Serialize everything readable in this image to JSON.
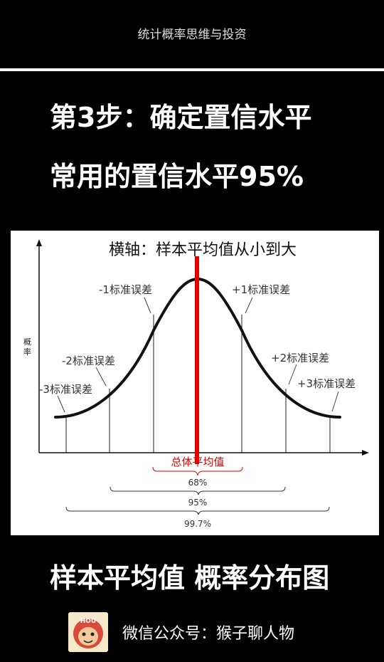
{
  "header": {
    "title": "统计概率思维与投资"
  },
  "slide": {
    "heading_1": "第3步：确定置信水平",
    "heading_2": "常用的置信水平95%",
    "heading_3": "样本平均值 概率分布图"
  },
  "figure": {
    "overlay_caption": "横轴：样本平均值从小到大",
    "y_axis_label": "概率",
    "mean_label": "总体平均值",
    "sd_labels": {
      "neg1": "-1标准误差",
      "pos1": "+1标准误差",
      "neg2": "-2标准误差",
      "pos2": "+2标准误差",
      "neg3": "-3标准误差",
      "pos3": "+3标准误差"
    },
    "intervals": {
      "one_sd": "68%",
      "two_sd": "95%",
      "three_sd": "99.7%"
    },
    "colors": {
      "mean_line": "#e00000",
      "curve": "#111111",
      "mean_label": "#e00000"
    }
  },
  "footer": {
    "avatar_text": "HOU",
    "signature": "微信公众号：猴子聊人物"
  }
}
